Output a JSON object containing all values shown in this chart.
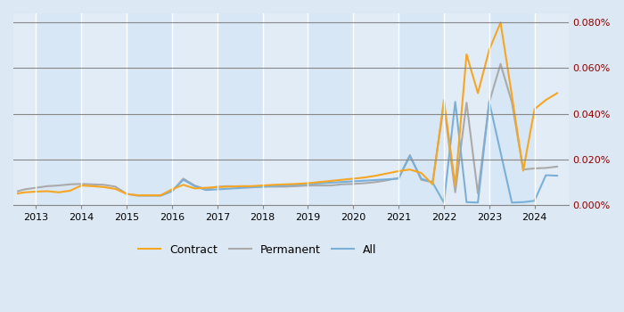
{
  "background_color": "#dce9f5",
  "plot_bg_color": "#dce9f5",
  "grid_color": "#ffffff",
  "x_min": 2012.5,
  "x_max": 2024.75,
  "y_min": -2e-06,
  "y_max": 0.00084,
  "yticks": [
    0.0,
    0.0002,
    0.0004,
    0.0006,
    0.0008
  ],
  "ytick_labels": [
    "0.000%",
    "0.020%",
    "0.040%",
    "0.060%",
    "0.080%"
  ],
  "xticks": [
    2013,
    2014,
    2015,
    2016,
    2017,
    2018,
    2019,
    2020,
    2021,
    2022,
    2023,
    2024
  ],
  "contract": {
    "x": [
      2012.6,
      2012.75,
      2013.0,
      2013.25,
      2013.5,
      2013.75,
      2014.0,
      2014.25,
      2014.5,
      2014.75,
      2015.0,
      2015.25,
      2015.5,
      2015.75,
      2016.0,
      2016.25,
      2016.5,
      2016.75,
      2017.0,
      2017.25,
      2017.5,
      2017.75,
      2018.0,
      2018.25,
      2018.5,
      2018.75,
      2019.0,
      2019.25,
      2019.5,
      2019.75,
      2020.0,
      2020.25,
      2020.5,
      2020.75,
      2021.0,
      2021.25,
      2021.5,
      2021.75,
      2022.0,
      2022.25,
      2022.5,
      2022.75,
      2023.0,
      2023.25,
      2023.5,
      2023.75,
      2024.0,
      2024.25,
      2024.5
    ],
    "y": [
      5e-05,
      5.5e-05,
      5.8e-05,
      6e-05,
      5.5e-05,
      6.2e-05,
      8.5e-05,
      8.2e-05,
      7.8e-05,
      7e-05,
      4.8e-05,
      4.2e-05,
      4.2e-05,
      4.2e-05,
      6.8e-05,
      8.8e-05,
      7.2e-05,
      7.5e-05,
      7.8e-05,
      8e-05,
      8.2e-05,
      8.2e-05,
      8.5e-05,
      8.8e-05,
      9e-05,
      9.2e-05,
      9.5e-05,
      0.0001,
      0.000105,
      0.00011,
      0.000115,
      0.00012,
      0.000128,
      0.000138,
      0.000148,
      0.000155,
      0.00014,
      9e-05,
      0.00046,
      8.5e-05,
      0.00066,
      0.00049,
      0.00068,
      0.0008,
      0.00048,
      0.00015,
      0.00042,
      0.00046,
      0.00049
    ],
    "color": "#f5a623",
    "label": "Contract",
    "linewidth": 1.5
  },
  "permanent": {
    "x": [
      2012.6,
      2012.75,
      2013.0,
      2013.25,
      2013.5,
      2013.75,
      2014.0,
      2014.25,
      2014.5,
      2014.75,
      2015.0,
      2015.25,
      2015.5,
      2015.75,
      2016.0,
      2016.25,
      2016.5,
      2016.75,
      2017.0,
      2017.25,
      2017.5,
      2017.75,
      2018.0,
      2018.25,
      2018.5,
      2018.75,
      2019.0,
      2019.25,
      2019.5,
      2019.75,
      2020.0,
      2020.25,
      2020.5,
      2020.75,
      2021.0,
      2021.25,
      2021.5,
      2021.75,
      2022.0,
      2022.25,
      2022.5,
      2022.75,
      2023.0,
      2023.25,
      2023.5,
      2023.75,
      2024.0,
      2024.25,
      2024.5
    ],
    "y": [
      6e-05,
      6.8e-05,
      7.5e-05,
      8.2e-05,
      8.5e-05,
      9e-05,
      9.2e-05,
      9e-05,
      8.8e-05,
      8e-05,
      4.8e-05,
      4e-05,
      4e-05,
      4e-05,
      6e-05,
      0.000115,
      8.5e-05,
      6.8e-05,
      8e-05,
      8.2e-05,
      8e-05,
      7.8e-05,
      8e-05,
      8e-05,
      8e-05,
      8.2e-05,
      8.5e-05,
      8.5e-05,
      8.5e-05,
      9e-05,
      9.2e-05,
      9.5e-05,
      0.0001,
      0.000108,
      0.000118,
      0.000218,
      0.00011,
      0.0001,
      0.00044,
      5.5e-05,
      0.000448,
      5e-05,
      0.00045,
      0.000618,
      0.00045,
      0.000155,
      0.00016,
      0.000162,
      0.000168
    ],
    "color": "#aaaaaa",
    "label": "Permanent",
    "linewidth": 1.5
  },
  "all": {
    "x": [
      2015.75,
      2016.0,
      2016.25,
      2016.5,
      2016.75,
      2021.0,
      2021.25,
      2021.5,
      2021.75,
      2022.0,
      2022.25,
      2022.5,
      2022.75,
      2023.0,
      2023.5,
      2023.75,
      2024.0,
      2024.25,
      2024.5
    ],
    "y": [
      4.2e-05,
      6e-05,
      0.00011,
      8.2e-05,
      6.5e-05,
      0.000115,
      0.000215,
      0.000115,
      9.8e-05,
      1e-05,
      0.000452,
      1.2e-05,
      1e-05,
      0.000452,
      1e-05,
      1.2e-05,
      1.8e-05,
      0.00013,
      0.000128
    ],
    "color": "#7ab0d8",
    "label": "All",
    "linewidth": 1.5
  },
  "legend_fontsize": 9,
  "tick_fontsize": 8,
  "ytick_color": "#8b0000"
}
